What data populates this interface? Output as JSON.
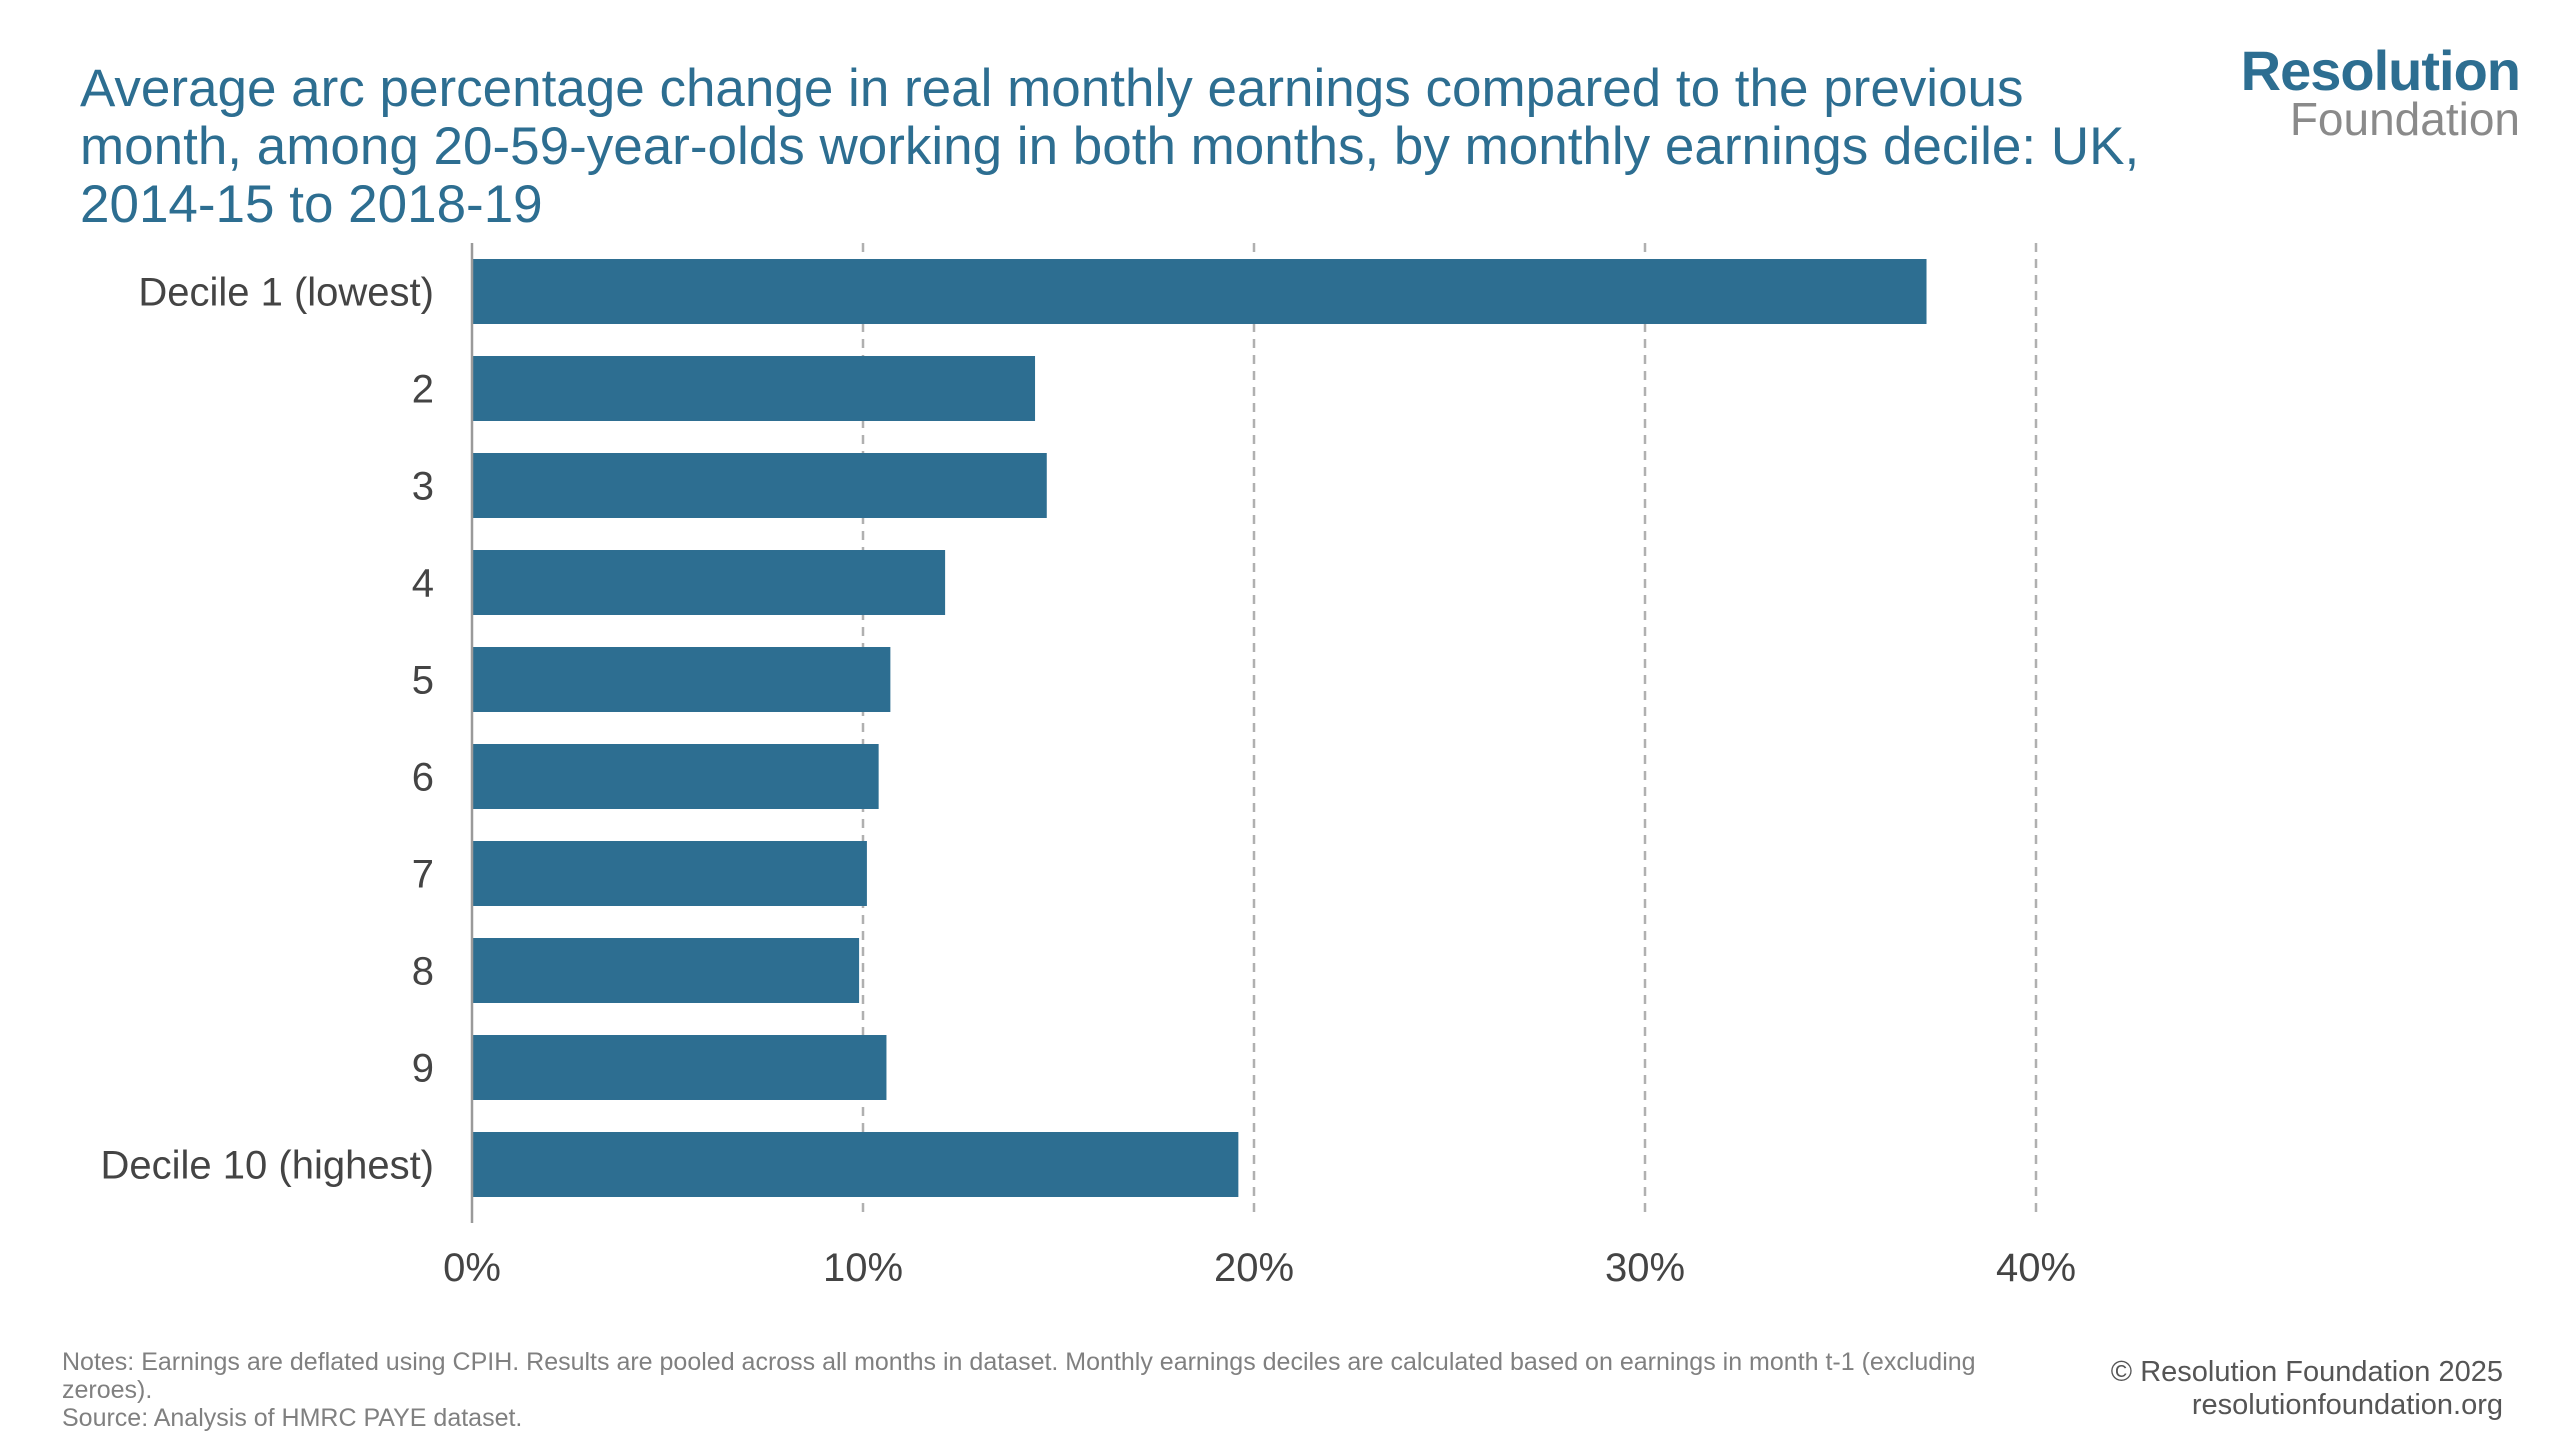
{
  "title": "Average arc percentage change in real monthly earnings compared to the previous month, among 20-59-year-olds working in both months, by monthly earnings decile: UK, 2014-15 to 2018-19",
  "logo": {
    "top": "Resolution",
    "bottom": "Foundation"
  },
  "notes": {
    "line1": "Notes: Earnings are deflated using CPIH. Results are pooled across all months in dataset. Monthly earnings deciles are calculated based on earnings in month t-1 (excluding zeroes).",
    "line2": "Source:  Analysis of HMRC PAYE dataset."
  },
  "copyright": {
    "line1": "© Resolution Foundation 2025",
    "line2": "resolutionfoundation.org"
  },
  "colors": {
    "bar": "#2d6e91",
    "title": "#2d6e91",
    "grid": "#b0b0b0"
  },
  "chart_data": {
    "type": "bar",
    "orientation": "horizontal",
    "categories": [
      "Decile 1 (lowest)",
      "2",
      "3",
      "4",
      "5",
      "6",
      "7",
      "8",
      "9",
      "Decile 10 (highest)"
    ],
    "values": [
      37.2,
      14.4,
      14.7,
      12.1,
      10.7,
      10.4,
      10.1,
      9.9,
      10.6,
      19.6
    ],
    "xlim": [
      0,
      40
    ],
    "xticks": [
      0,
      10,
      20,
      30,
      40
    ],
    "xtick_labels": [
      "0%",
      "10%",
      "20%",
      "30%",
      "40%"
    ],
    "xlabel": "",
    "ylabel": "",
    "grid": "vertical dashed",
    "legend": "none"
  }
}
